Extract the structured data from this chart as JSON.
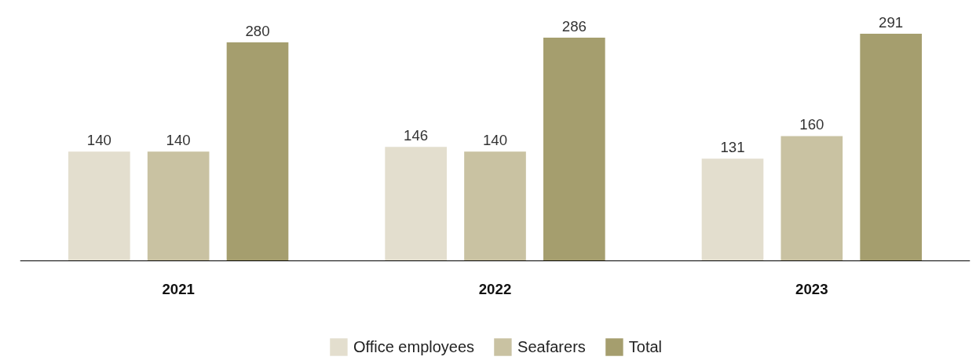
{
  "chart_data": {
    "type": "bar",
    "categories": [
      "2021",
      "2022",
      "2023"
    ],
    "series": [
      {
        "name": "Office employees",
        "color": "#e3dece",
        "values": [
          140,
          146,
          131
        ]
      },
      {
        "name": "Seafarers",
        "color": "#c9c2a2",
        "values": [
          140,
          140,
          160
        ]
      },
      {
        "name": "Total",
        "color": "#a59e6e",
        "values": [
          280,
          286,
          291
        ]
      }
    ],
    "data_labels": true,
    "grid": false,
    "legend": "bottom"
  }
}
